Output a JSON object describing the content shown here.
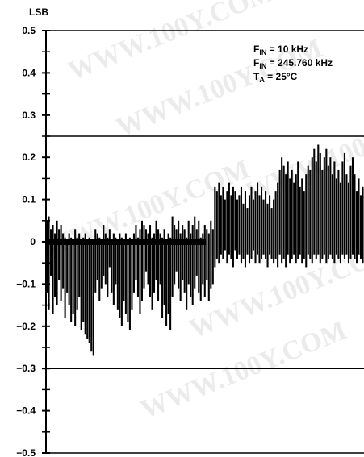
{
  "chart_data": {
    "type": "bar",
    "ylabel": "LSB",
    "ylim": [
      -0.5,
      0.5
    ],
    "yticks": [
      {
        "value": 0.5,
        "label": "0.5"
      },
      {
        "value": 0.4,
        "label": "0.4"
      },
      {
        "value": 0.3,
        "label": "0.3"
      },
      {
        "value": 0.2,
        "label": "0.2"
      },
      {
        "value": 0.1,
        "label": "0.1"
      },
      {
        "value": 0,
        "label": "0"
      },
      {
        "value": -0.1,
        "label": "−0.1"
      },
      {
        "value": -0.2,
        "label": "−0.2"
      },
      {
        "value": -0.3,
        "label": "−0.3"
      },
      {
        "value": -0.4,
        "label": "−0.4"
      },
      {
        "value": -0.5,
        "label": "−0.5"
      }
    ],
    "reference_lines": [
      0.25,
      -0.3
    ],
    "annotations": {
      "line1": {
        "main": "F",
        "sub": "IN",
        "rest": " = 10 kHz"
      },
      "line2": {
        "main": "F",
        "sub": "IN",
        "rest": " = 245.760 kHz"
      },
      "line3": {
        "main": "T",
        "sub": "A",
        "rest": " = 25°C"
      }
    },
    "series": [
      {
        "color": "#000000",
        "values": [
          [
            -0.12,
            0.05
          ],
          [
            -0.16,
            0.06
          ],
          [
            -0.08,
            0.03
          ],
          [
            -0.17,
            0.04
          ],
          [
            -0.13,
            0.02
          ],
          [
            -0.15,
            0.05
          ],
          [
            -0.09,
            0.03
          ],
          [
            -0.14,
            0.04
          ],
          [
            -0.11,
            0.02
          ],
          [
            -0.18,
            0.01
          ],
          [
            -0.12,
            0.0
          ],
          [
            -0.15,
            0.02
          ],
          [
            -0.19,
            0.01
          ],
          [
            -0.17,
            0.0
          ],
          [
            -0.2,
            0.03
          ],
          [
            -0.16,
            0.01
          ],
          [
            -0.13,
            0.02
          ],
          [
            -0.21,
            0.0
          ],
          [
            -0.19,
            0.01
          ],
          [
            -0.22,
            0.02
          ],
          [
            -0.23,
            0.0
          ],
          [
            -0.24,
            0.01
          ],
          [
            -0.26,
            0.0
          ],
          [
            -0.27,
            0.0
          ],
          [
            -0.12,
            0.03
          ],
          [
            -0.09,
            0.02
          ],
          [
            -0.14,
            0.01
          ],
          [
            -0.11,
            0.0
          ],
          [
            -0.08,
            0.04
          ],
          [
            -0.1,
            0.02
          ],
          [
            -0.13,
            0.01
          ],
          [
            -0.06,
            0.03
          ],
          [
            -0.12,
            0.0
          ],
          [
            -0.15,
            0.02
          ],
          [
            -0.1,
            0.01
          ],
          [
            -0.16,
            0.0
          ],
          [
            -0.18,
            0.02
          ],
          [
            -0.2,
            0.01
          ],
          [
            -0.14,
            0.0
          ],
          [
            -0.17,
            0.02
          ],
          [
            -0.19,
            0.0
          ],
          [
            -0.21,
            0.01
          ],
          [
            -0.16,
            0.0
          ],
          [
            -0.12,
            0.02
          ],
          [
            -0.09,
            0.04
          ],
          [
            -0.13,
            0.01
          ],
          [
            -0.17,
            0.03
          ],
          [
            -0.14,
            0.05
          ],
          [
            -0.11,
            0.04
          ],
          [
            -0.07,
            0.03
          ],
          [
            -0.1,
            0.02
          ],
          [
            -0.13,
            0.04
          ],
          [
            -0.16,
            0.01
          ],
          [
            -0.12,
            0.02
          ],
          [
            -0.09,
            0.05
          ],
          [
            -0.14,
            0.03
          ],
          [
            -0.1,
            0.02
          ],
          [
            -0.18,
            0.01
          ],
          [
            -0.15,
            0.03
          ],
          [
            -0.2,
            0.0
          ],
          [
            -0.17,
            0.02
          ],
          [
            -0.21,
            0.01
          ],
          [
            -0.13,
            0.06
          ],
          [
            -0.1,
            0.04
          ],
          [
            -0.07,
            0.03
          ],
          [
            -0.11,
            0.05
          ],
          [
            -0.14,
            0.02
          ],
          [
            -0.09,
            0.04
          ],
          [
            -0.12,
            0.03
          ],
          [
            -0.16,
            0.01
          ],
          [
            -0.1,
            0.05
          ],
          [
            -0.13,
            0.02
          ],
          [
            -0.15,
            0.04
          ],
          [
            -0.11,
            0.06
          ],
          [
            -0.08,
            0.03
          ],
          [
            -0.12,
            0.05
          ],
          [
            -0.14,
            0.01
          ],
          [
            -0.1,
            0.02
          ],
          [
            -0.13,
            0.04
          ],
          [
            -0.09,
            0.03
          ],
          [
            -0.14,
            0.02
          ],
          [
            -0.11,
            0.05
          ],
          [
            -0.1,
            0.03
          ],
          [
            -0.06,
            0.13
          ],
          [
            -0.04,
            0.12
          ],
          [
            -0.05,
            0.14
          ],
          [
            -0.03,
            0.11
          ],
          [
            -0.04,
            0.13
          ],
          [
            -0.02,
            0.1
          ],
          [
            -0.05,
            0.12
          ],
          [
            -0.03,
            0.14
          ],
          [
            -0.04,
            0.11
          ],
          [
            -0.06,
            0.13
          ],
          [
            -0.02,
            0.12
          ],
          [
            -0.04,
            0.1
          ],
          [
            -0.03,
            0.11
          ],
          [
            -0.05,
            0.13
          ],
          [
            -0.04,
            0.09
          ],
          [
            -0.06,
            0.12
          ],
          [
            -0.03,
            0.08
          ],
          [
            -0.05,
            0.11
          ],
          [
            -0.04,
            0.13
          ],
          [
            -0.02,
            0.1
          ],
          [
            -0.05,
            0.12
          ],
          [
            -0.03,
            0.14
          ],
          [
            -0.05,
            0.11
          ],
          [
            -0.04,
            0.13
          ],
          [
            -0.03,
            0.1
          ],
          [
            -0.04,
            0.12
          ],
          [
            -0.06,
            0.09
          ],
          [
            -0.03,
            0.11
          ],
          [
            -0.04,
            0.08
          ],
          [
            -0.05,
            0.1
          ],
          [
            -0.04,
            0.12
          ],
          [
            -0.06,
            0.14
          ],
          [
            -0.03,
            0.17
          ],
          [
            -0.05,
            0.2
          ],
          [
            -0.04,
            0.18
          ],
          [
            -0.06,
            0.16
          ],
          [
            -0.03,
            0.19
          ],
          [
            -0.05,
            0.15
          ],
          [
            -0.04,
            0.17
          ],
          [
            -0.03,
            0.14
          ],
          [
            -0.05,
            0.16
          ],
          [
            -0.04,
            0.19
          ],
          [
            -0.03,
            0.13
          ],
          [
            -0.05,
            0.15
          ],
          [
            -0.04,
            0.12
          ],
          [
            -0.06,
            0.16
          ],
          [
            -0.03,
            0.18
          ],
          [
            -0.04,
            0.17
          ],
          [
            -0.05,
            0.2
          ],
          [
            -0.03,
            0.22
          ],
          [
            -0.04,
            0.19
          ],
          [
            -0.03,
            0.23
          ],
          [
            -0.05,
            0.21
          ],
          [
            -0.04,
            0.17
          ],
          [
            -0.03,
            0.2
          ],
          [
            -0.05,
            0.22
          ],
          [
            -0.04,
            0.18
          ],
          [
            -0.03,
            0.2
          ],
          [
            -0.04,
            0.16
          ],
          [
            -0.05,
            0.19
          ],
          [
            -0.03,
            0.15
          ],
          [
            -0.04,
            0.17
          ],
          [
            -0.05,
            0.14
          ],
          [
            -0.03,
            0.19
          ],
          [
            -0.04,
            0.21
          ],
          [
            -0.03,
            0.16
          ],
          [
            -0.05,
            0.14
          ],
          [
            -0.04,
            0.18
          ],
          [
            -0.03,
            0.2
          ],
          [
            -0.04,
            0.16
          ],
          [
            -0.05,
            0.12
          ],
          [
            -0.03,
            0.15
          ],
          [
            -0.04,
            0.11
          ],
          [
            -0.05,
            0.13
          ]
        ]
      }
    ]
  }
}
